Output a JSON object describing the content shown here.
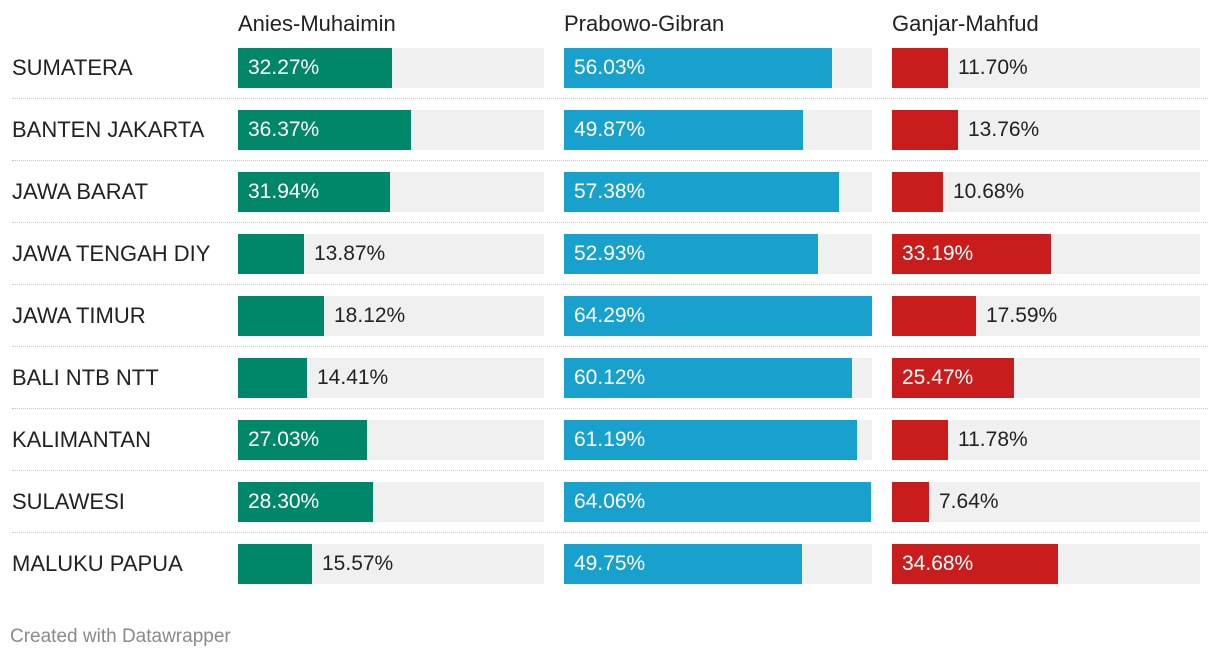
{
  "chart_data": {
    "type": "bar",
    "categories": [
      "SUMATERA",
      "BANTEN JAKARTA",
      "JAWA BARAT",
      "JAWA TENGAH DIY",
      "JAWA TIMUR",
      "BALI NTB NTT",
      "KALIMANTAN",
      "SULAWESI",
      "MALUKU PAPUA"
    ],
    "series": [
      {
        "name": "Anies-Muhaimin",
        "color": "#00876a",
        "values": [
          32.27,
          36.37,
          31.94,
          13.87,
          18.12,
          14.41,
          27.03,
          28.3,
          15.57
        ],
        "labels": [
          "32.27%",
          "36.37%",
          "31.94%",
          "13.87%",
          "18.12%",
          "14.41%",
          "27.03%",
          "28.30%",
          "15.57%"
        ]
      },
      {
        "name": "Prabowo-Gibran",
        "color": "#18a1cd",
        "values": [
          56.03,
          49.87,
          57.38,
          52.93,
          64.29,
          60.12,
          61.19,
          64.06,
          49.75
        ],
        "labels": [
          "56.03%",
          "49.87%",
          "57.38%",
          "52.93%",
          "64.29%",
          "60.12%",
          "61.19%",
          "64.06%",
          "49.75%"
        ]
      },
      {
        "name": "Ganjar-Mahfud",
        "color": "#c91d1d",
        "values": [
          11.7,
          13.76,
          10.68,
          33.19,
          17.59,
          25.47,
          11.78,
          7.64,
          34.68
        ],
        "labels": [
          "11.70%",
          "13.76%",
          "10.68%",
          "33.19%",
          "17.59%",
          "25.47%",
          "11.78%",
          "7.64%",
          "34.68%"
        ]
      }
    ],
    "xlim": [
      0,
      64.29
    ],
    "grid": false,
    "legend": "none"
  },
  "footer": {
    "credit": "Created with Datawrapper"
  }
}
